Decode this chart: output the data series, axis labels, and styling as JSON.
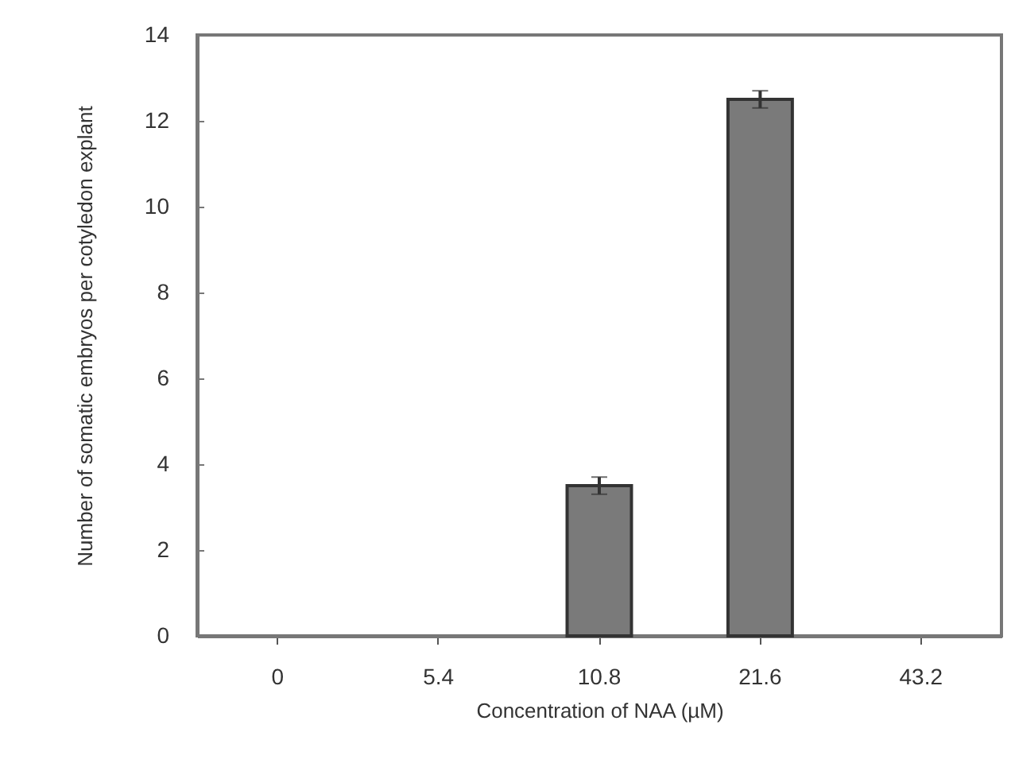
{
  "chart_data": {
    "type": "bar",
    "xlabel": "Concentration of NAA (µM)",
    "ylabel": "Number of somatic embryos per cotyledon explant",
    "categories": [
      "0",
      "5.4",
      "10.8",
      "21.6",
      "43.2"
    ],
    "values": [
      0,
      0,
      3.5,
      12.5,
      0
    ],
    "errors": [
      null,
      null,
      0.2,
      0.2,
      null
    ],
    "color": "#7a7a7a",
    "ylim": [
      0,
      14
    ],
    "yticks": [
      0,
      2,
      4,
      6,
      8,
      10,
      12,
      14
    ],
    "grid": false
  }
}
